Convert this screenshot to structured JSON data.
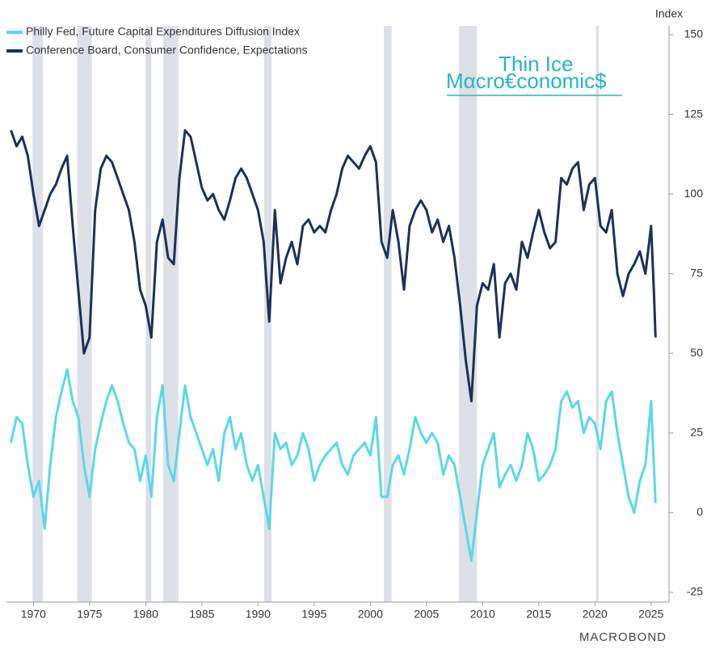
{
  "chart_data": {
    "type": "line",
    "y_axis_title": "Index",
    "logo_line1": "Thin Ice",
    "logo_line2": "Mαcro€conomic$",
    "source": "MACROBOND",
    "legend": "top-left",
    "xlim": [
      1967.6,
      2026.6
    ],
    "ylim": [
      -25,
      150
    ],
    "xticks": [
      1970,
      1975,
      1980,
      1985,
      1990,
      1995,
      2000,
      2005,
      2010,
      2015,
      2020,
      2025
    ],
    "yticks": [
      -25,
      0,
      25,
      50,
      75,
      100,
      125,
      150
    ],
    "recessions": [
      [
        1969.92,
        1970.85
      ],
      [
        1973.9,
        1975.2
      ],
      [
        1980.0,
        1980.5
      ],
      [
        1981.55,
        1982.9
      ],
      [
        1990.55,
        1991.2
      ],
      [
        2001.2,
        2001.9
      ],
      [
        2007.9,
        2009.5
      ],
      [
        2020.1,
        2020.35
      ]
    ],
    "x": [
      1968.0,
      1968.5,
      1969.0,
      1969.5,
      1970.0,
      1970.5,
      1971.0,
      1971.5,
      1972.0,
      1972.5,
      1973.0,
      1973.5,
      1974.0,
      1974.5,
      1975.0,
      1975.5,
      1976.0,
      1976.5,
      1977.0,
      1977.5,
      1978.0,
      1978.5,
      1979.0,
      1979.5,
      1980.0,
      1980.5,
      1981.0,
      1981.5,
      1982.0,
      1982.5,
      1983.0,
      1983.5,
      1984.0,
      1984.5,
      1985.0,
      1985.5,
      1986.0,
      1986.5,
      1987.0,
      1987.5,
      1988.0,
      1988.5,
      1989.0,
      1989.5,
      1990.0,
      1990.5,
      1991.0,
      1991.5,
      1992.0,
      1992.5,
      1993.0,
      1993.5,
      1994.0,
      1994.5,
      1995.0,
      1995.5,
      1996.0,
      1996.5,
      1997.0,
      1997.5,
      1998.0,
      1998.5,
      1999.0,
      1999.5,
      2000.0,
      2000.5,
      2001.0,
      2001.5,
      2002.0,
      2002.5,
      2003.0,
      2003.5,
      2004.0,
      2004.5,
      2005.0,
      2005.5,
      2006.0,
      2006.5,
      2007.0,
      2007.5,
      2008.0,
      2008.5,
      2009.0,
      2009.5,
      2010.0,
      2010.5,
      2011.0,
      2011.5,
      2012.0,
      2012.5,
      2013.0,
      2013.5,
      2014.0,
      2014.5,
      2015.0,
      2015.5,
      2016.0,
      2016.5,
      2017.0,
      2017.5,
      2018.0,
      2018.5,
      2019.0,
      2019.5,
      2020.0,
      2020.5,
      2021.0,
      2021.5,
      2022.0,
      2022.5,
      2023.0,
      2023.5,
      2024.0,
      2024.5,
      2025.0,
      2025.25,
      2025.4
    ],
    "series": [
      {
        "name": "Philly Fed, Future Capital Expenditures Diffusion Index",
        "color": "#5ad8e8",
        "values": [
          22,
          30,
          28,
          15,
          5,
          10,
          -5,
          15,
          30,
          38,
          45,
          35,
          30,
          15,
          5,
          20,
          28,
          35,
          40,
          35,
          28,
          22,
          20,
          10,
          18,
          5,
          30,
          40,
          15,
          10,
          25,
          40,
          30,
          25,
          20,
          15,
          20,
          10,
          25,
          30,
          20,
          25,
          15,
          10,
          15,
          5,
          -5,
          25,
          20,
          22,
          15,
          18,
          25,
          20,
          10,
          15,
          18,
          20,
          22,
          15,
          12,
          18,
          20,
          22,
          18,
          30,
          5,
          5,
          15,
          18,
          12,
          20,
          30,
          25,
          22,
          25,
          22,
          12,
          18,
          15,
          5,
          -5,
          -15,
          0,
          15,
          20,
          25,
          8,
          12,
          15,
          10,
          15,
          25,
          20,
          10,
          12,
          15,
          20,
          35,
          38,
          33,
          35,
          25,
          30,
          28,
          20,
          35,
          38,
          25,
          15,
          5,
          0,
          10,
          15,
          35,
          15,
          3
        ]
      },
      {
        "name": "Conference Board, Consumer Confidence, Expectations",
        "color": "#1b3159",
        "values": [
          120,
          115,
          118,
          112,
          100,
          90,
          95,
          100,
          103,
          108,
          112,
          90,
          70,
          50,
          55,
          95,
          108,
          112,
          110,
          105,
          100,
          95,
          85,
          70,
          65,
          55,
          85,
          92,
          80,
          78,
          105,
          120,
          118,
          110,
          102,
          98,
          100,
          95,
          92,
          98,
          105,
          108,
          105,
          100,
          95,
          85,
          60,
          95,
          72,
          80,
          85,
          78,
          90,
          92,
          88,
          90,
          88,
          95,
          100,
          108,
          112,
          110,
          108,
          112,
          115,
          110,
          85,
          80,
          95,
          85,
          70,
          90,
          95,
          98,
          95,
          88,
          92,
          85,
          90,
          80,
          65,
          48,
          35,
          65,
          72,
          70,
          78,
          55,
          72,
          75,
          70,
          85,
          80,
          88,
          95,
          88,
          83,
          85,
          105,
          103,
          108,
          110,
          95,
          103,
          105,
          90,
          88,
          95,
          75,
          68,
          75,
          78,
          82,
          75,
          90,
          70,
          55
        ]
      }
    ]
  }
}
